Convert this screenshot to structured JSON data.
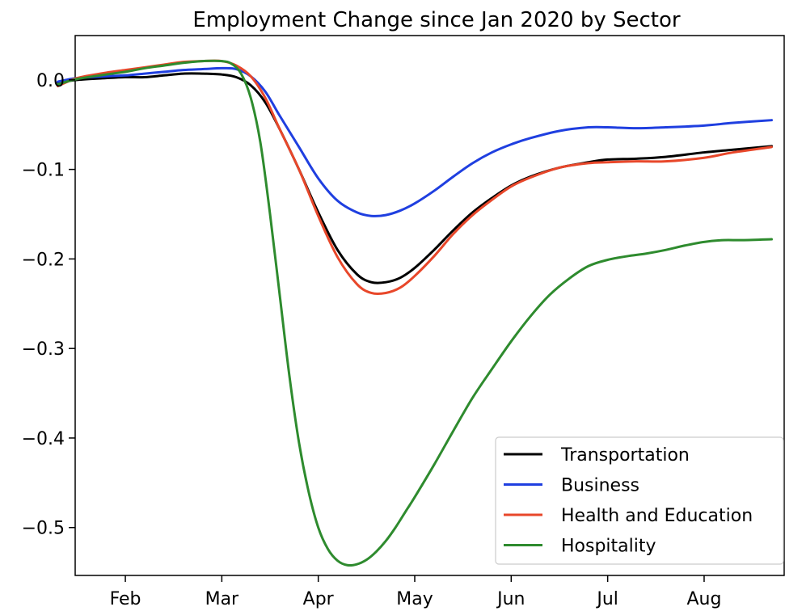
{
  "chart_data": {
    "type": "line",
    "title": "Employment Change since Jan 2020 by Sector",
    "xlabel": "",
    "ylabel": "",
    "x_unit": "month (2020)",
    "xlim": [
      0.48,
      7.83
    ],
    "ylim": [
      -0.5535,
      0.0495
    ],
    "xticks": [
      {
        "value": 1,
        "label": "Feb"
      },
      {
        "value": 2,
        "label": "Mar"
      },
      {
        "value": 3,
        "label": "Apr"
      },
      {
        "value": 4,
        "label": "May"
      },
      {
        "value": 5,
        "label": "Jun"
      },
      {
        "value": 6,
        "label": "Jul"
      },
      {
        "value": 7,
        "label": "Aug"
      }
    ],
    "yticks": [
      0.0,
      -0.1,
      -0.2,
      -0.3,
      -0.4,
      -0.5
    ],
    "ytick_labels": [
      "0.0",
      "−0.1",
      "−0.2",
      "−0.3",
      "−0.4",
      "−0.5"
    ],
    "grid": false,
    "legend_position": "lower-right",
    "series": [
      {
        "name": "Transportation",
        "color": "#000000",
        "x": [
          0.3,
          0.5,
          0.8,
          1.0,
          1.2,
          1.4,
          1.6,
          1.8,
          2.0,
          2.15,
          2.3,
          2.45,
          2.6,
          2.8,
          3.0,
          3.2,
          3.4,
          3.55,
          3.7,
          3.85,
          4.0,
          4.2,
          4.4,
          4.6,
          4.8,
          5.0,
          5.2,
          5.5,
          5.8,
          6.0,
          6.3,
          6.6,
          7.0,
          7.3,
          7.7
        ],
        "y": [
          -0.003,
          0.0,
          0.002,
          0.003,
          0.003,
          0.005,
          0.007,
          0.007,
          0.006,
          0.003,
          -0.006,
          -0.025,
          -0.055,
          -0.1,
          -0.148,
          -0.19,
          -0.217,
          -0.226,
          -0.226,
          -0.221,
          -0.21,
          -0.19,
          -0.168,
          -0.148,
          -0.132,
          -0.118,
          -0.108,
          -0.098,
          -0.092,
          -0.089,
          -0.088,
          -0.086,
          -0.081,
          -0.078,
          -0.074
        ]
      },
      {
        "name": "Business",
        "color": "#1f3fe0",
        "x": [
          0.3,
          0.5,
          0.8,
          1.0,
          1.2,
          1.4,
          1.6,
          1.8,
          2.0,
          2.15,
          2.3,
          2.45,
          2.6,
          2.8,
          3.0,
          3.2,
          3.4,
          3.55,
          3.7,
          3.85,
          4.0,
          4.2,
          4.4,
          4.6,
          4.8,
          5.0,
          5.2,
          5.5,
          5.8,
          6.0,
          6.3,
          6.6,
          7.0,
          7.3,
          7.7
        ],
        "y": [
          -0.002,
          0.002,
          0.004,
          0.005,
          0.007,
          0.009,
          0.011,
          0.012,
          0.013,
          0.012,
          0.004,
          -0.013,
          -0.04,
          -0.075,
          -0.11,
          -0.135,
          -0.148,
          -0.152,
          -0.151,
          -0.146,
          -0.138,
          -0.124,
          -0.108,
          -0.093,
          -0.081,
          -0.072,
          -0.065,
          -0.057,
          -0.053,
          -0.053,
          -0.054,
          -0.053,
          -0.051,
          -0.048,
          -0.045
        ]
      },
      {
        "name": "Health and Education",
        "color": "#e8472a",
        "x": [
          0.3,
          0.5,
          0.8,
          1.0,
          1.2,
          1.4,
          1.6,
          1.8,
          2.0,
          2.15,
          2.3,
          2.45,
          2.6,
          2.8,
          3.0,
          3.2,
          3.4,
          3.55,
          3.7,
          3.85,
          4.0,
          4.2,
          4.4,
          4.6,
          4.8,
          5.0,
          5.2,
          5.5,
          5.8,
          6.0,
          6.3,
          6.6,
          7.0,
          7.3,
          7.7
        ],
        "y": [
          -0.007,
          0.002,
          0.008,
          0.011,
          0.014,
          0.017,
          0.02,
          0.021,
          0.021,
          0.016,
          0.004,
          -0.02,
          -0.055,
          -0.1,
          -0.152,
          -0.198,
          -0.228,
          -0.238,
          -0.238,
          -0.232,
          -0.219,
          -0.197,
          -0.172,
          -0.151,
          -0.134,
          -0.119,
          -0.109,
          -0.098,
          -0.093,
          -0.092,
          -0.091,
          -0.091,
          -0.087,
          -0.081,
          -0.075
        ]
      },
      {
        "name": "Hospitality",
        "color": "#2e8b2e",
        "x": [
          0.3,
          0.5,
          0.8,
          1.0,
          1.2,
          1.4,
          1.6,
          1.8,
          2.0,
          2.1,
          2.2,
          2.3,
          2.4,
          2.5,
          2.6,
          2.7,
          2.8,
          2.9,
          3.0,
          3.1,
          3.2,
          3.3,
          3.4,
          3.5,
          3.6,
          3.7,
          3.8,
          3.9,
          4.0,
          4.2,
          4.4,
          4.6,
          4.8,
          5.0,
          5.2,
          5.4,
          5.6,
          5.8,
          6.0,
          6.2,
          6.4,
          6.6,
          6.8,
          7.0,
          7.2,
          7.4,
          7.7
        ],
        "y": [
          -0.005,
          0.001,
          0.006,
          0.009,
          0.013,
          0.016,
          0.019,
          0.021,
          0.021,
          0.018,
          0.007,
          -0.02,
          -0.07,
          -0.15,
          -0.24,
          -0.33,
          -0.405,
          -0.46,
          -0.5,
          -0.524,
          -0.537,
          -0.542,
          -0.541,
          -0.536,
          -0.527,
          -0.515,
          -0.5,
          -0.483,
          -0.466,
          -0.43,
          -0.392,
          -0.355,
          -0.323,
          -0.292,
          -0.264,
          -0.24,
          -0.222,
          -0.208,
          -0.201,
          -0.197,
          -0.194,
          -0.19,
          -0.185,
          -0.181,
          -0.179,
          -0.179,
          -0.178
        ]
      }
    ]
  }
}
